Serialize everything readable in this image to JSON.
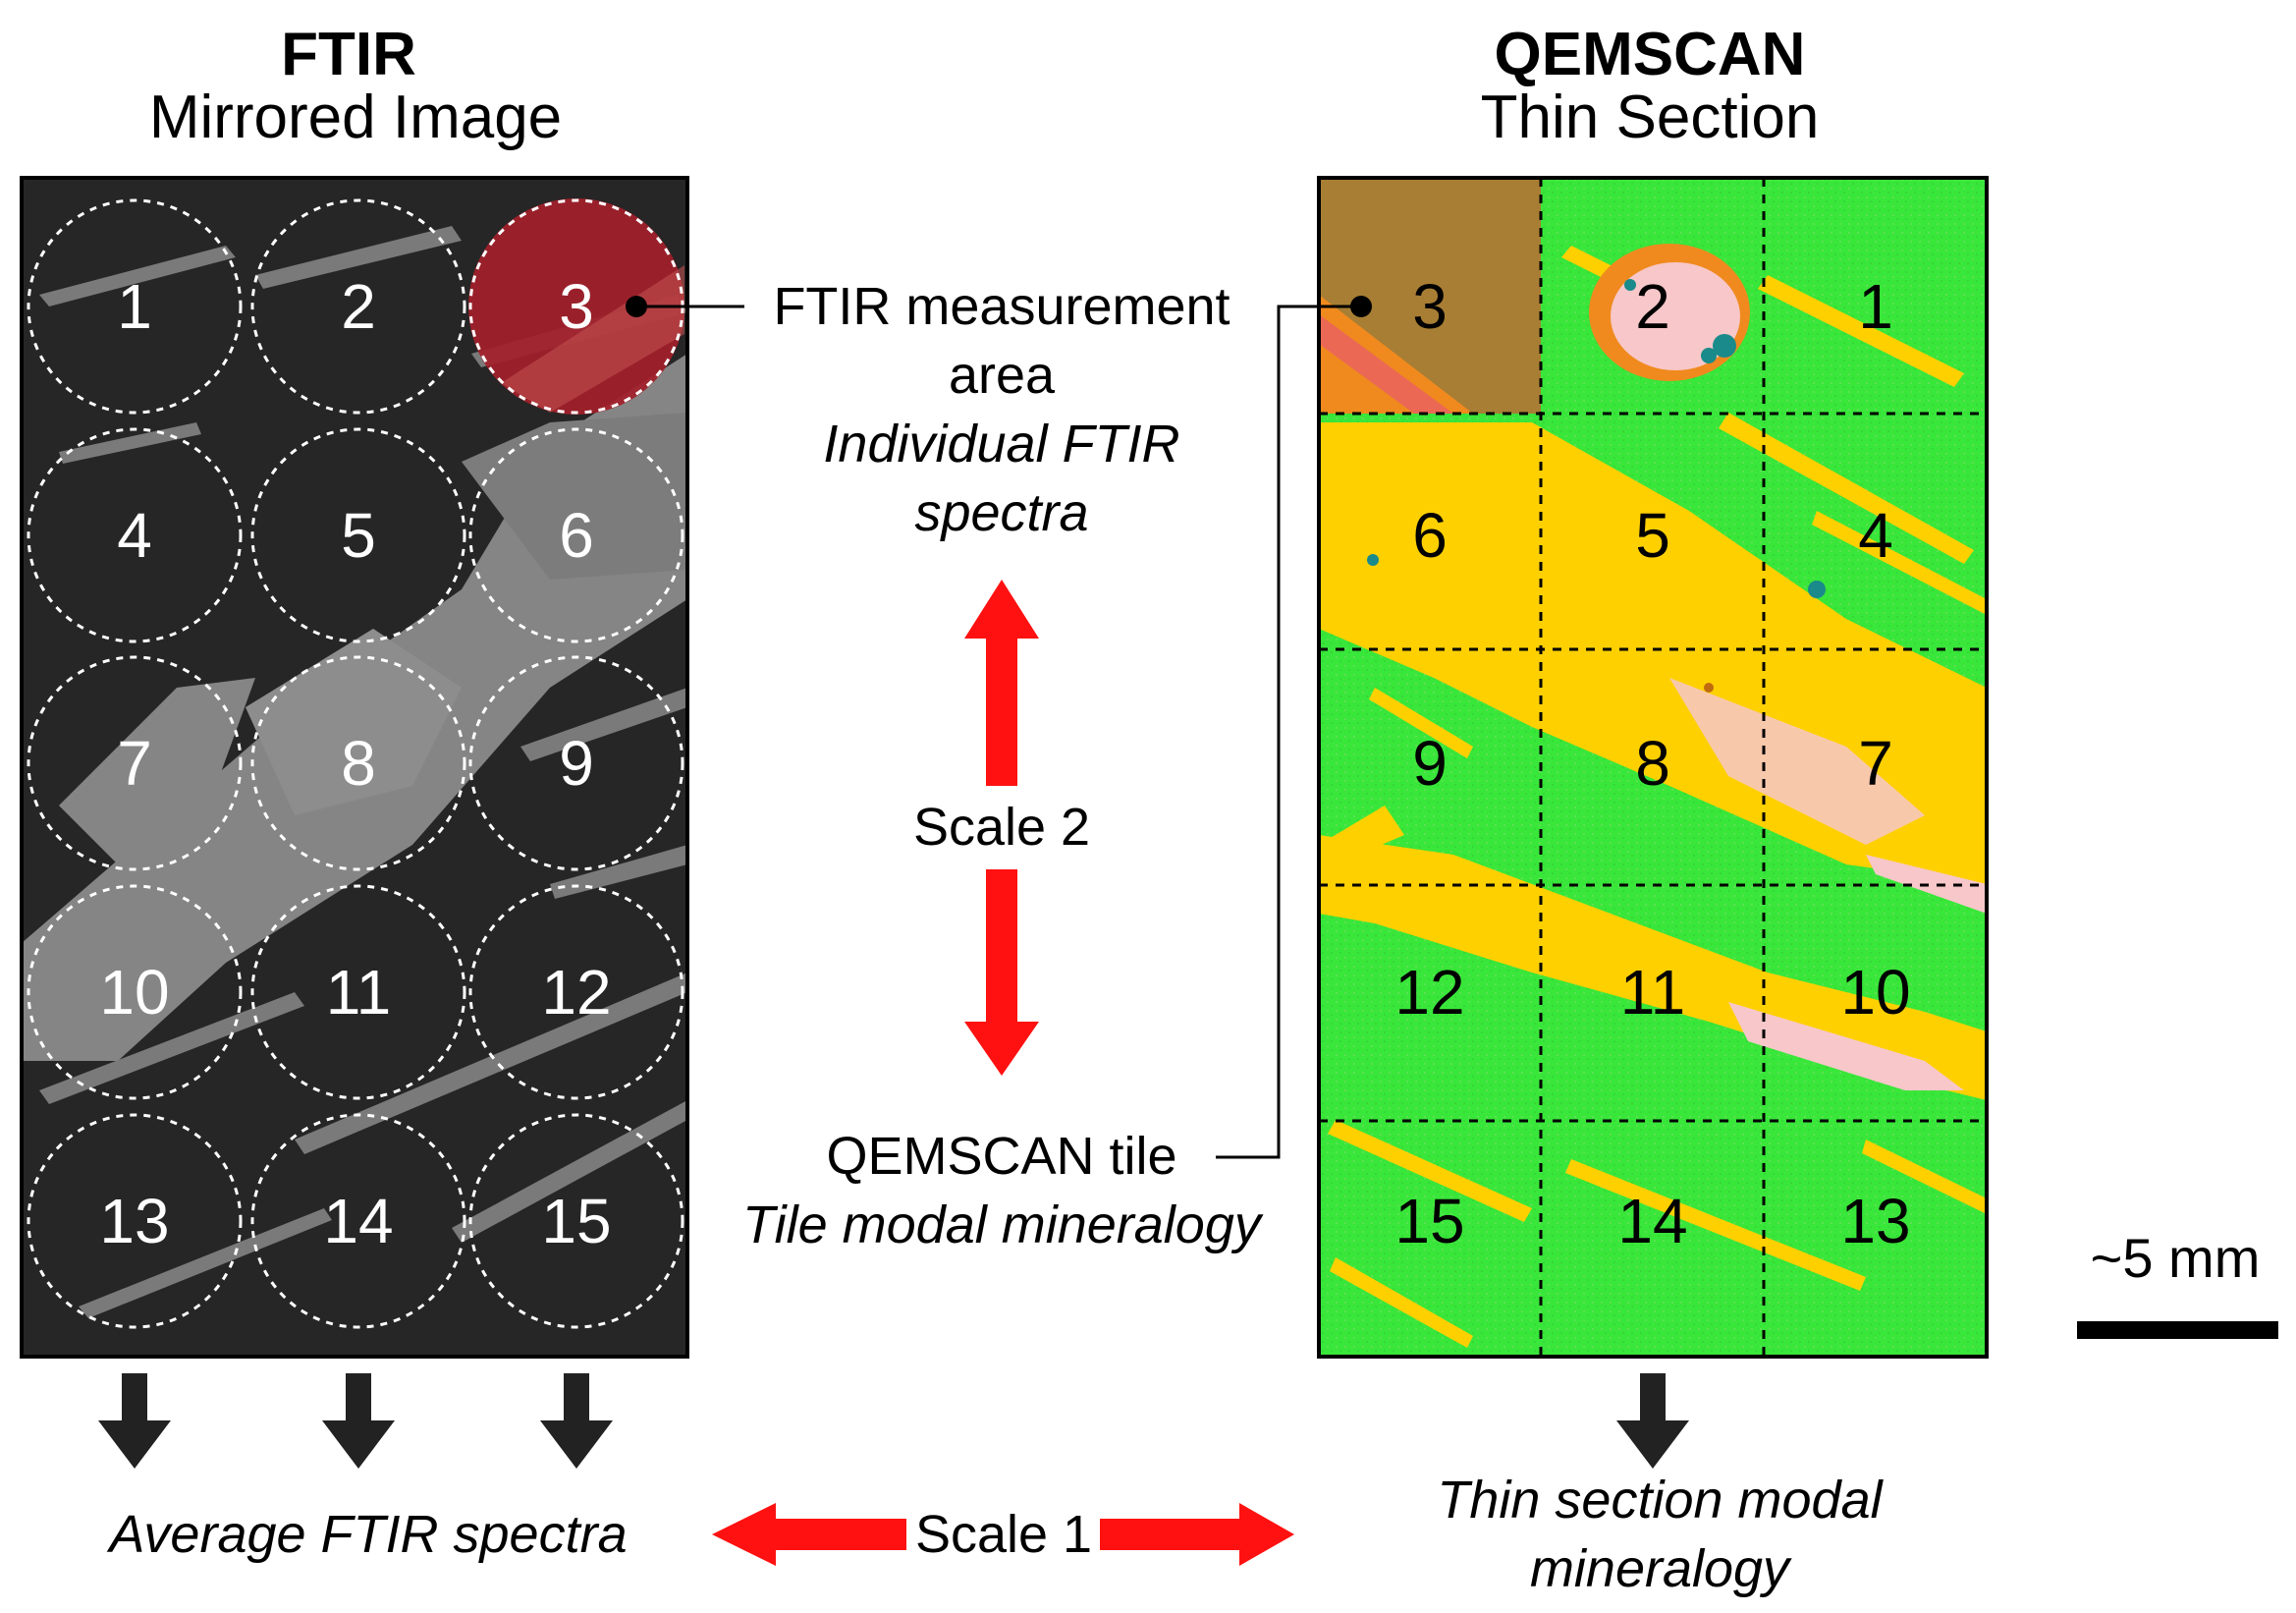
{
  "ftir_panel": {
    "title": "FTIR",
    "subtitle": "Mirrored Image",
    "circles": [
      "1",
      "2",
      "3",
      "4",
      "5",
      "6",
      "7",
      "8",
      "9",
      "10",
      "11",
      "12",
      "13",
      "14",
      "15"
    ],
    "highlighted_circle": "3",
    "output_label": "Average FTIR spectra"
  },
  "qemscan_panel": {
    "title": "QEMSCAN",
    "subtitle": "Thin Section",
    "tiles": [
      "3",
      "2",
      "1",
      "6",
      "5",
      "4",
      "9",
      "8",
      "7",
      "12",
      "11",
      "10",
      "15",
      "14",
      "13"
    ],
    "highlighted_tile": "3",
    "output_label_line1": "Thin section modal",
    "output_label_line2": "mineralogy"
  },
  "annotations": {
    "ftir_area_line1": "FTIR measurement",
    "ftir_area_line2": "area",
    "ftir_area_desc_line1": "Individual FTIR",
    "ftir_area_desc_line2": "spectra",
    "scale2": "Scale 2",
    "qemscan_tile": "QEMSCAN tile",
    "qemscan_tile_desc": "Tile modal mineralogy",
    "scale1": "Scale 1",
    "scale_bar": "~5 mm"
  },
  "colors": {
    "ftir_background": "#262626",
    "ftir_mineral_grey": "#8a8a8a",
    "highlight_red": "#a3202a",
    "arrow_red": "#ff1111",
    "qemscan_green": "#39e63a",
    "qemscan_yellow": "#ffd000",
    "qemscan_pink": "#f7c7c9",
    "qemscan_orange": "#f08a1e",
    "qemscan_teal": "#1a8a8a",
    "arrow_dark": "#222222"
  }
}
